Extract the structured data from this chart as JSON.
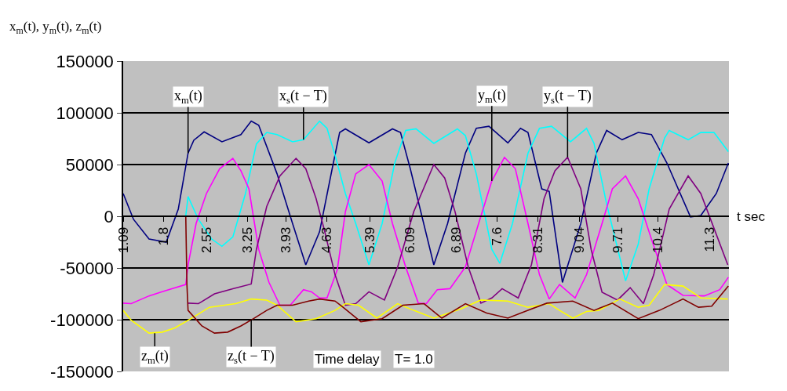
{
  "chart_data": {
    "type": "line",
    "ylabel": "x$_{m}$(t), y$_{m}$(t), z$_{m}$(t)",
    "xlabel": "t sec",
    "xlim": [
      1.09,
      11.64
    ],
    "xticks": [
      1.09,
      1.8,
      2.55,
      3.25,
      3.93,
      4.63,
      5.39,
      6.09,
      6.89,
      7.6,
      8.31,
      9.04,
      9.71,
      10.4,
      11.3
    ],
    "ylim": [
      -150000,
      150000
    ],
    "yticks": [
      -150000,
      -100000,
      -50000,
      0,
      50000,
      100000,
      150000
    ],
    "grid": "y",
    "series": [
      {
        "color": "#000080",
        "x": [
          1.09,
          1.27,
          1.54,
          1.84,
          2.05,
          2.22,
          2.32,
          2.5,
          2.81,
          3.14,
          3.32,
          3.45,
          3.77,
          4.04,
          4.27,
          4.51,
          4.73,
          4.86,
          4.96,
          5.37,
          5.78,
          5.92,
          6.09,
          6.5,
          6.74,
          7.05,
          7.24,
          7.46,
          7.79,
          8.01,
          8.14,
          8.38,
          8.51,
          8.74,
          9.06,
          9.33,
          9.51,
          9.78,
          10.06,
          10.29,
          10.56,
          10.97,
          11.15,
          11.42,
          11.63
        ],
        "values": [
          22000,
          -3000,
          -22000,
          -25000,
          7000,
          61000,
          73500,
          81600,
          72000,
          79000,
          92000,
          88000,
          41000,
          -7000,
          -47000,
          -15000,
          46000,
          81000,
          84500,
          71000,
          84500,
          81000,
          46000,
          -47000,
          -7000,
          61000,
          85000,
          87000,
          71000,
          85000,
          81000,
          26500,
          24000,
          -64000,
          -7000,
          61000,
          83000,
          74000,
          81000,
          79000,
          51500,
          -700,
          700,
          22000,
          51500
        ]
      },
      {
        "color": "#00ffff",
        "x": [
          2.18,
          2.22,
          2.4,
          2.63,
          2.81,
          3.0,
          3.22,
          3.41,
          3.59,
          3.77,
          4.04,
          4.23,
          4.51,
          4.64,
          4.78,
          4.96,
          5.14,
          5.37,
          5.6,
          5.82,
          6.01,
          6.19,
          6.5,
          6.91,
          7.05,
          7.24,
          7.51,
          7.65,
          7.87,
          8.14,
          8.34,
          8.55,
          8.88,
          9.16,
          9.29,
          9.51,
          9.84,
          10.06,
          10.25,
          10.52,
          10.6,
          10.93,
          11.15,
          11.38,
          11.63
        ],
        "values": [
          700,
          19000,
          -3000,
          -22000,
          -29000,
          -20000,
          22000,
          70000,
          81000,
          79000,
          72000,
          74000,
          92000,
          85000,
          59000,
          22000,
          -7000,
          -47000,
          -7000,
          51500,
          83000,
          84500,
          70500,
          84500,
          78000,
          41000,
          -32000,
          -45500,
          -7000,
          61000,
          85000,
          87000,
          72000,
          85000,
          70500,
          11800,
          -62500,
          -27000,
          26500,
          75700,
          83000,
          74000,
          81000,
          81000,
          62500
        ]
      },
      {
        "color": "#ff00ff",
        "x": [
          1.09,
          1.23,
          1.54,
          1.77,
          2.18,
          2.22,
          2.36,
          2.54,
          2.77,
          3.0,
          3.14,
          3.28,
          3.45,
          3.63,
          3.82,
          4.0,
          4.23,
          4.37,
          4.51,
          4.64,
          4.82,
          4.96,
          5.14,
          5.37,
          5.6,
          5.78,
          6.01,
          6.23,
          6.37,
          6.56,
          6.78,
          7.05,
          7.28,
          7.51,
          7.73,
          7.92,
          8.14,
          8.34,
          8.51,
          8.69,
          8.96,
          9.16,
          9.43,
          9.61,
          9.84,
          10.06,
          10.29,
          10.56,
          10.84,
          11.21,
          11.48,
          11.63
        ],
        "values": [
          -84000,
          -84500,
          -77000,
          -73000,
          -66000,
          -47000,
          -7000,
          22000,
          46000,
          56000,
          44000,
          26500,
          -32000,
          -64000,
          -86000,
          -86000,
          -71000,
          -73000,
          -79000,
          -79000,
          -51500,
          4400,
          41000,
          50000,
          34000,
          -7000,
          -49000,
          -84000,
          -84500,
          -71000,
          -70000,
          -49000,
          -7000,
          34000,
          57000,
          46000,
          -7000,
          -56500,
          -80000,
          -66000,
          -79000,
          -56500,
          -7000,
          26500,
          39000,
          17000,
          -22000,
          -66000,
          -76500,
          -77000,
          -71000,
          -59000
        ]
      },
      {
        "color": "#800080",
        "x": [
          2.22,
          2.4,
          2.68,
          3.0,
          3.32,
          3.41,
          3.59,
          3.82,
          4.1,
          4.27,
          4.45,
          4.59,
          4.78,
          4.96,
          5.14,
          5.37,
          5.64,
          5.87,
          6.15,
          6.5,
          6.69,
          6.87,
          7.1,
          7.32,
          7.51,
          7.69,
          7.97,
          8.2,
          8.42,
          8.61,
          8.83,
          9.06,
          9.24,
          9.43,
          9.7,
          9.92,
          10.15,
          10.33,
          10.6,
          10.93,
          11.15,
          11.42,
          11.62
        ],
        "values": [
          -84000,
          -84500,
          -75000,
          -70000,
          -65500,
          -32000,
          9500,
          39000,
          56000,
          46000,
          17000,
          -12500,
          -56500,
          -86000,
          -84500,
          -73000,
          -81000,
          -49000,
          4400,
          50000,
          37000,
          4400,
          -49000,
          -84000,
          -79000,
          -70000,
          -79000,
          -47000,
          17000,
          44000,
          57000,
          26500,
          -32000,
          -73500,
          -81000,
          -69000,
          -84500,
          -56500,
          7000,
          39000,
          22000,
          -17500,
          -47000
        ]
      },
      {
        "color": "#ffff00",
        "x": [
          1.09,
          1.23,
          1.54,
          1.77,
          1.99,
          2.27,
          2.59,
          3.05,
          3.32,
          3.59,
          3.77,
          4.1,
          4.45,
          4.78,
          4.96,
          5.19,
          5.51,
          5.87,
          6.15,
          6.5,
          6.97,
          7.32,
          7.79,
          8.14,
          8.51,
          8.69,
          8.92,
          9.16,
          9.37,
          9.74,
          10.06,
          10.25,
          10.52,
          10.84,
          11.15,
          11.62
        ],
        "values": [
          -91000,
          -100500,
          -113000,
          -112000,
          -108000,
          -99000,
          -88000,
          -84500,
          -80000,
          -81000,
          -86000,
          -102000,
          -99000,
          -91000,
          -84500,
          -86000,
          -98500,
          -84500,
          -91000,
          -98500,
          -89500,
          -81000,
          -82000,
          -88000,
          -84500,
          -91000,
          -98500,
          -92000,
          -91000,
          -80000,
          -88000,
          -86000,
          -66000,
          -67500,
          -79000,
          -80000
        ]
      },
      {
        "color": "#800000",
        "x": [
          1.09,
          2.18,
          2.2,
          2.22,
          2.46,
          2.68,
          2.91,
          3.14,
          3.36,
          3.59,
          3.77,
          4.04,
          4.32,
          4.51,
          4.78,
          4.92,
          5.23,
          5.6,
          5.96,
          6.33,
          6.64,
          7.05,
          7.42,
          7.79,
          8.14,
          8.47,
          8.92,
          9.29,
          9.61,
          10.06,
          10.43,
          10.84,
          11.11,
          11.34,
          11.63
        ],
        "values": [
          0,
          0,
          -66000,
          -91000,
          -106000,
          -113000,
          -112000,
          -106000,
          -99000,
          -91000,
          -86000,
          -86000,
          -82000,
          -80000,
          -82000,
          -88000,
          -102000,
          -99000,
          -86000,
          -84500,
          -98500,
          -84500,
          -93500,
          -98500,
          -91000,
          -84000,
          -82000,
          -91000,
          -84000,
          -99000,
          -91000,
          -80000,
          -88000,
          -87000,
          -67500
        ]
      }
    ],
    "annotations": [
      {
        "text": "x$_{m}$(t)",
        "x": 2.22,
        "y": 61000
      },
      {
        "text": "x$_{s}$(t − T)",
        "x": 4.23,
        "y": 74000
      },
      {
        "text": "y$_{m}$(t)",
        "x": 7.51,
        "y": 34000
      },
      {
        "text": "y$_{s}$(t − T)",
        "x": 8.83,
        "y": 57000
      },
      {
        "text": "z$_{m}$(t)",
        "x": 1.64,
        "y": -113000
      },
      {
        "text": "z$_{s}$(t − T)",
        "x": 3.32,
        "y": -100000
      },
      "Time delay",
      "T= 1.0"
    ]
  }
}
